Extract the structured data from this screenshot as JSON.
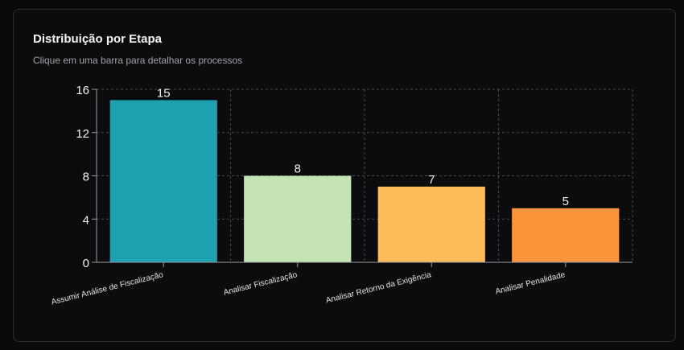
{
  "card": {
    "title": "Distribuição por Etapa",
    "subtitle": "Clique em uma barra para detalhar os processos"
  },
  "chart_data": {
    "type": "bar",
    "title": "",
    "xlabel": "",
    "ylabel": "",
    "categories": [
      "Assumir Análise de Fiscalização",
      "Analisar Fiscalização",
      "Analisar Retorno da Exigência",
      "Analisar Penalidade"
    ],
    "values": [
      15,
      8,
      7,
      5
    ],
    "data_labels": [
      "15",
      "8",
      "7",
      "5"
    ],
    "colors": [
      "#1da1b0",
      "#c5e4b4",
      "#fdbb5a",
      "#fb953c"
    ],
    "ylim": [
      0,
      16
    ],
    "yticks": [
      0,
      4,
      8,
      12,
      16
    ],
    "ytick_labels": [
      "0",
      "4",
      "8",
      "12",
      "16"
    ],
    "grid": true,
    "legend": "none"
  }
}
